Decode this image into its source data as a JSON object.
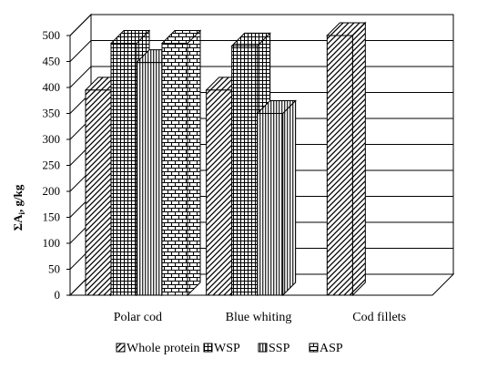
{
  "chart_data": {
    "type": "bar",
    "title": "",
    "xlabel": "",
    "ylabel": "ΣA, g/kg",
    "ylabel_main": "ΣA",
    "ylabel_sub": "i",
    "ylabel_rest": ", g/kg",
    "ylim": [
      0,
      500
    ],
    "yticks": [
      0,
      50,
      100,
      150,
      200,
      250,
      300,
      350,
      400,
      450,
      500
    ],
    "grid": true,
    "legend_position": "bottom",
    "categories": [
      "Polar cod",
      "Blue whiting",
      "Cod fillets"
    ],
    "series": [
      {
        "name": "Whole protein",
        "pattern": "diagonal",
        "values": [
          395,
          395,
          500
        ]
      },
      {
        "name": "WSP",
        "pattern": "grid",
        "values": [
          485,
          480,
          null
        ]
      },
      {
        "name": "SSP",
        "pattern": "vertical",
        "values": [
          448,
          350,
          null
        ]
      },
      {
        "name": "ASP",
        "pattern": "brick",
        "values": [
          485,
          null,
          null
        ]
      }
    ]
  }
}
